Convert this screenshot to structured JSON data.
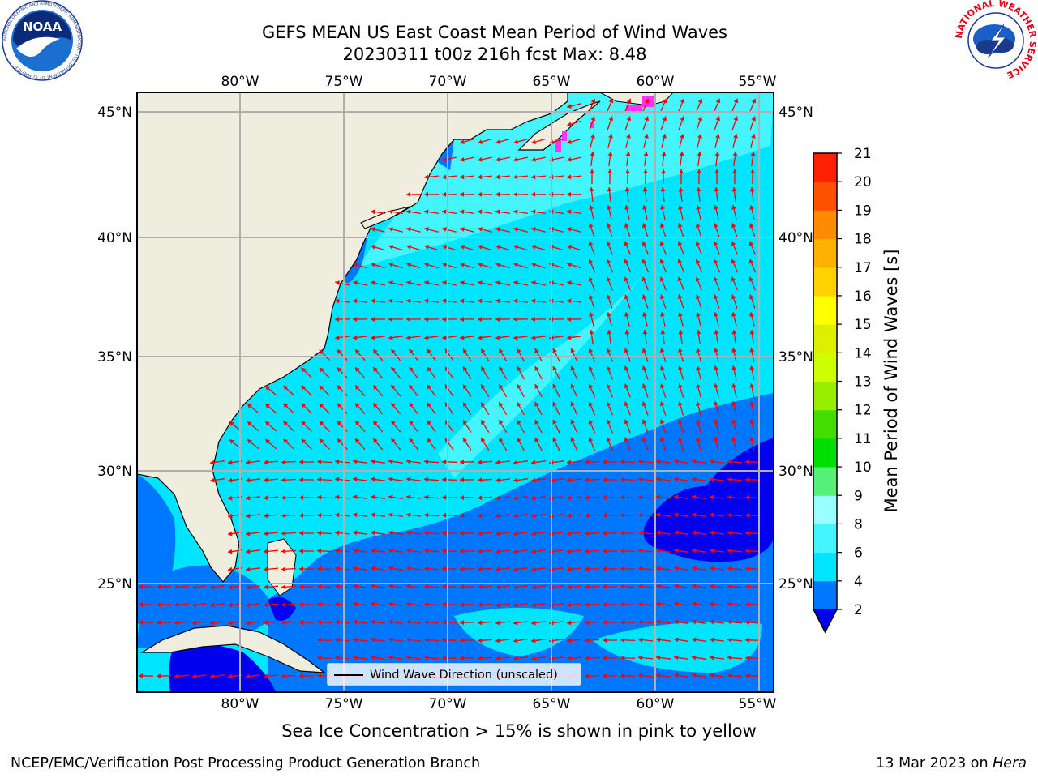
{
  "header": {
    "title_line1": "GEFS MEAN US East Coast Mean Period of Wind Waves",
    "title_line2": "20230311 t00z 216h fcst   Max: 8.48"
  },
  "logos": {
    "left": "NOAA",
    "left_ring_text": "NATIONAL OCEANIC AND ATMOSPHERIC ADMINISTRATION · U.S. DEPARTMENT OF COMMERCE",
    "right_ring_text": "NATIONAL WEATHER SERVICE"
  },
  "map": {
    "lon_labels": [
      "80°W",
      "75°W",
      "70°W",
      "65°W",
      "60°W",
      "55°W"
    ],
    "lat_labels": [
      "45°N",
      "40°N",
      "35°N",
      "30°N",
      "25°N"
    ],
    "legend_label": "Wind Wave Direction (unscaled)",
    "colors": {
      "land": "#efedde",
      "grid": "#b0b0b0",
      "arrow": "#ff0000",
      "sea_ice": "#ff33ff"
    }
  },
  "colorbar": {
    "title": "Mean Period of Wind Waves [s]",
    "levels": [
      "2",
      "4",
      "6",
      "8",
      "9",
      "10",
      "11",
      "12",
      "13",
      "14",
      "15",
      "16",
      "17",
      "18",
      "19",
      "20",
      "21"
    ],
    "colors": [
      "#0077ff",
      "#00e5ff",
      "#44f5ff",
      "#99ffff",
      "#55f07a",
      "#00e000",
      "#44dd00",
      "#99ee00",
      "#ccff00",
      "#ddf000",
      "#ffff00",
      "#ffd200",
      "#ffb000",
      "#ff8c00",
      "#ff5000",
      "#ff2000",
      "#ff0000"
    ],
    "under_color": "#0000ee"
  },
  "caption": "Sea Ice Concentration > 15% is shown in pink to yellow",
  "footer": {
    "left": "NCEP/EMC/Verification Post Processing Product Generation Branch",
    "right_date": "13 Mar 2023 on ",
    "right_machine": "Hera"
  }
}
